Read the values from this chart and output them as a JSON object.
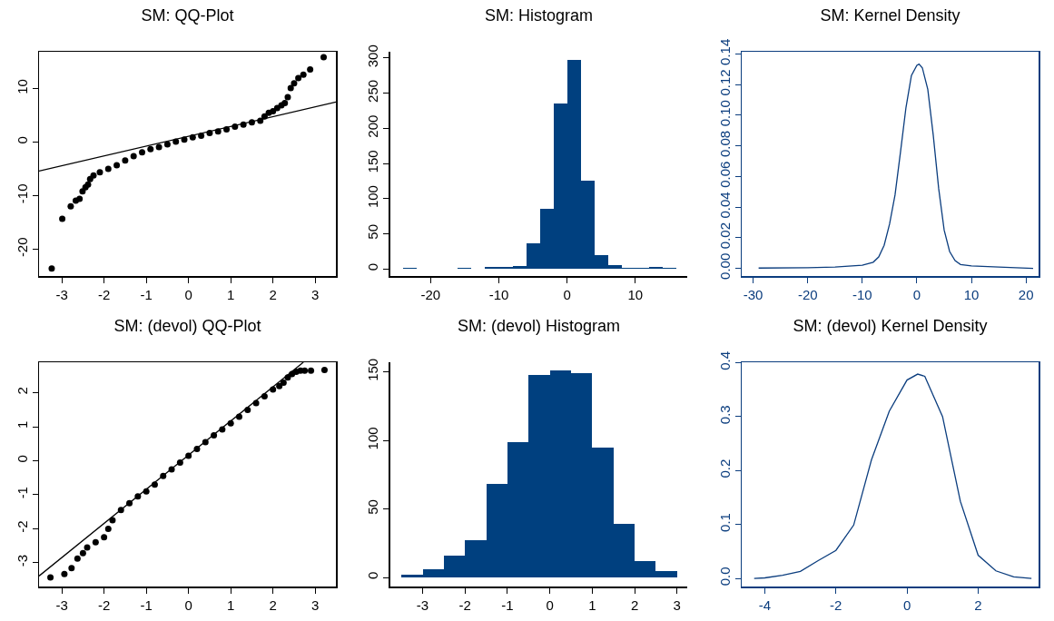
{
  "chart_data": [
    {
      "type": "scatter",
      "title": "SM: QQ-Plot",
      "xlim": [
        -3.54,
        3.49
      ],
      "xticks": [
        -3,
        -2,
        -1,
        0,
        1,
        2,
        3
      ],
      "ylim": [
        -25,
        16.9
      ],
      "yticks": [
        -20,
        -10,
        0,
        10
      ],
      "series": [
        {
          "type": "scatter",
          "marker": "circle",
          "color": "#000000",
          "x": [
            -3.24,
            -2.99,
            -2.79,
            -2.67,
            -2.58,
            -2.51,
            -2.44,
            -2.38,
            -2.33,
            -2.25,
            -2.1,
            -1.9,
            -1.7,
            -1.5,
            -1.3,
            -1.1,
            -0.9,
            -0.7,
            -0.5,
            -0.3,
            -0.1,
            0.1,
            0.3,
            0.5,
            0.7,
            0.9,
            1.1,
            1.3,
            1.5,
            1.7,
            1.8,
            1.9,
            2.0,
            2.1,
            2.2,
            2.28,
            2.35,
            2.42,
            2.5,
            2.6,
            2.72,
            2.88,
            3.2
          ],
          "values": [
            -23.6,
            -14.3,
            -12.0,
            -10.9,
            -10.6,
            -9.2,
            -8.4,
            -7.9,
            -6.9,
            -6.2,
            -5.6,
            -5.0,
            -4.3,
            -3.4,
            -2.6,
            -1.9,
            -1.3,
            -0.9,
            -0.4,
            0.1,
            0.5,
            0.9,
            1.2,
            1.7,
            2.0,
            2.4,
            2.9,
            3.3,
            3.7,
            4.0,
            4.8,
            5.5,
            5.8,
            6.4,
            6.9,
            7.3,
            8.4,
            10.1,
            11.0,
            12.0,
            12.6,
            13.6,
            15.9
          ]
        },
        {
          "type": "line",
          "color": "#000000",
          "x": [
            -3.54,
            3.49
          ],
          "values": [
            -5.4,
            7.5
          ]
        }
      ]
    },
    {
      "type": "histogram",
      "title": "SM: Histogram",
      "xlim": [
        -25.9,
        17.6
      ],
      "xticks": [
        -20,
        -10,
        0,
        10
      ],
      "ylim": [
        -10,
        309
      ],
      "yticks": [
        0,
        50,
        100,
        150,
        200,
        250,
        300
      ],
      "color": "#00407f",
      "bins": [
        -24,
        -22,
        -20,
        -18,
        -16,
        -14,
        -12,
        -10,
        -8,
        -6,
        -4,
        -2,
        0,
        2,
        4,
        6,
        8,
        10,
        12,
        14,
        16
      ],
      "values": [
        1,
        0,
        0,
        0,
        1,
        0,
        3,
        3,
        4,
        37,
        86,
        236,
        298,
        126,
        20,
        6,
        1,
        2,
        3,
        1
      ]
    },
    {
      "type": "line",
      "title": "SM: Kernel Density",
      "xlim": [
        -32.1,
        22.3
      ],
      "xticks": [
        -30,
        -20,
        -10,
        0,
        10,
        20
      ],
      "ylim": [
        -0.005,
        0.1415
      ],
      "yticks": [
        {
          "value": 0,
          "label": "0.00"
        },
        {
          "value": 0.02,
          "label": "0.02"
        },
        {
          "value": 0.04,
          "label": "0.04"
        },
        {
          "value": 0.06,
          "label": "0.06"
        },
        {
          "value": 0.08,
          "label": "0.08"
        },
        {
          "value": 0.1,
          "label": "0.10"
        },
        {
          "value": 0.12,
          "label": "0.12"
        },
        {
          "value": 0.14,
          "label": "0.14"
        }
      ],
      "color": "#0b3d7e",
      "x": [
        -29,
        -20,
        -15,
        -10,
        -8,
        -7,
        -6,
        -5,
        -4,
        -3,
        -2,
        -1,
        0,
        0.4,
        1,
        2,
        3,
        4,
        5,
        6,
        7,
        8,
        10,
        15,
        21.3
      ],
      "values": [
        0.0002,
        0.0004,
        0.0008,
        0.002,
        0.004,
        0.0074,
        0.015,
        0.029,
        0.048,
        0.076,
        0.105,
        0.126,
        0.1326,
        0.1334,
        0.131,
        0.117,
        0.087,
        0.052,
        0.025,
        0.011,
        0.005,
        0.0025,
        0.0016,
        0.0008,
        0.0
      ]
    },
    {
      "type": "scatter",
      "title": "SM: (devol) QQ-Plot",
      "xlim": [
        -3.54,
        3.49
      ],
      "xticks": [
        -3,
        -2,
        -1,
        0,
        1,
        2,
        3
      ],
      "ylim": [
        -3.7,
        2.9
      ],
      "yticks": [
        -3,
        -2,
        -1,
        0,
        1,
        2
      ],
      "series": [
        {
          "type": "scatter",
          "marker": "circle",
          "color": "#000000",
          "x": [
            -3.27,
            -2.94,
            -2.77,
            -2.63,
            -2.5,
            -2.4,
            -2.2,
            -2.0,
            -1.9,
            -1.8,
            -1.6,
            -1.4,
            -1.2,
            -1.0,
            -0.8,
            -0.6,
            -0.4,
            -0.2,
            0,
            0.2,
            0.4,
            0.6,
            0.8,
            1.0,
            1.2,
            1.4,
            1.6,
            1.8,
            2.0,
            2.15,
            2.25,
            2.35,
            2.45,
            2.55,
            2.65,
            2.75,
            2.9,
            3.22
          ],
          "values": [
            -3.43,
            -3.33,
            -3.16,
            -2.88,
            -2.72,
            -2.55,
            -2.4,
            -2.25,
            -2.0,
            -1.75,
            -1.45,
            -1.25,
            -1.05,
            -0.9,
            -0.7,
            -0.45,
            -0.25,
            -0.05,
            0.15,
            0.35,
            0.55,
            0.75,
            0.92,
            1.1,
            1.3,
            1.5,
            1.7,
            1.9,
            2.1,
            2.2,
            2.3,
            2.45,
            2.55,
            2.62,
            2.65,
            2.65,
            2.65,
            2.67
          ]
        },
        {
          "type": "line",
          "color": "#000000",
          "x": [
            -3.54,
            2.72
          ],
          "values": [
            -3.39,
            2.9
          ]
        }
      ]
    },
    {
      "type": "histogram",
      "title": "SM: (devol) Histogram",
      "xlim": [
        -3.76,
        3.24
      ],
      "xticks": [
        -3,
        -2,
        -1,
        0,
        1,
        2,
        3
      ],
      "ylim": [
        -6.5,
        157
      ],
      "yticks": [
        0,
        50,
        100,
        150
      ],
      "color": "#00407f",
      "bins": [
        -3.5,
        -3,
        -2.5,
        -2,
        -1.5,
        -1,
        -0.5,
        0,
        0.5,
        1,
        1.5,
        2,
        2.5,
        3
      ],
      "values": [
        2,
        6,
        16,
        27,
        68,
        99,
        148,
        151,
        149,
        95,
        39,
        12,
        5
      ]
    },
    {
      "type": "line",
      "title": "SM: (devol) Kernel Density",
      "xlim": [
        -4.65,
        3.7
      ],
      "xticks": [
        -4,
        -2,
        0,
        2
      ],
      "ylim": [
        -0.015,
        0.401
      ],
      "yticks": [
        {
          "value": 0,
          "label": "0.0"
        },
        {
          "value": 0.1,
          "label": "0.1"
        },
        {
          "value": 0.2,
          "label": "0.2"
        },
        {
          "value": 0.3,
          "label": "0.3"
        },
        {
          "value": 0.4,
          "label": "0.4"
        }
      ],
      "color": "#0b3d7e",
      "x": [
        -4.3,
        -4,
        -3.5,
        -3,
        -2.5,
        -2,
        -1.5,
        -1,
        -0.5,
        0,
        0.3,
        0.5,
        1,
        1.5,
        2,
        2.5,
        3,
        3.5
      ],
      "values": [
        0.0,
        0.001,
        0.006,
        0.013,
        0.033,
        0.052,
        0.099,
        0.22,
        0.31,
        0.368,
        0.379,
        0.375,
        0.3,
        0.143,
        0.043,
        0.014,
        0.003,
        0.0
      ]
    }
  ]
}
